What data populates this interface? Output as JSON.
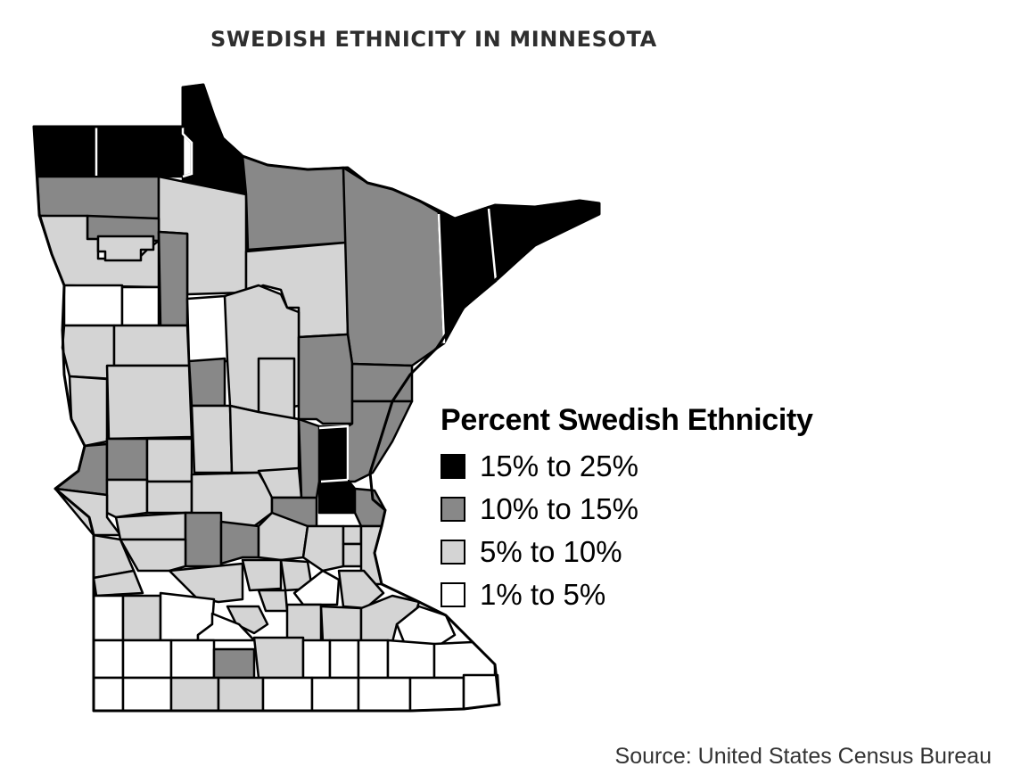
{
  "title": "SWEDISH ETHNICITY IN MINNESOTA",
  "legend": {
    "title": "Percent Swedish Ethnicity",
    "items": [
      {
        "label": "15% to 25%",
        "color": "#000000",
        "level": "high"
      },
      {
        "label": "10% to 15%",
        "color": "#888888",
        "level": "mid"
      },
      {
        "label": "5% to 10%",
        "color": "#d4d4d4",
        "level": "low"
      },
      {
        "label": "1% to 5%",
        "color": "#ffffff",
        "level": "min"
      }
    ]
  },
  "source": "Source: United States Census Bureau",
  "colors": {
    "high": "#000000",
    "mid": "#888888",
    "low": "#d4d4d4",
    "min": "#ffffff"
  }
}
